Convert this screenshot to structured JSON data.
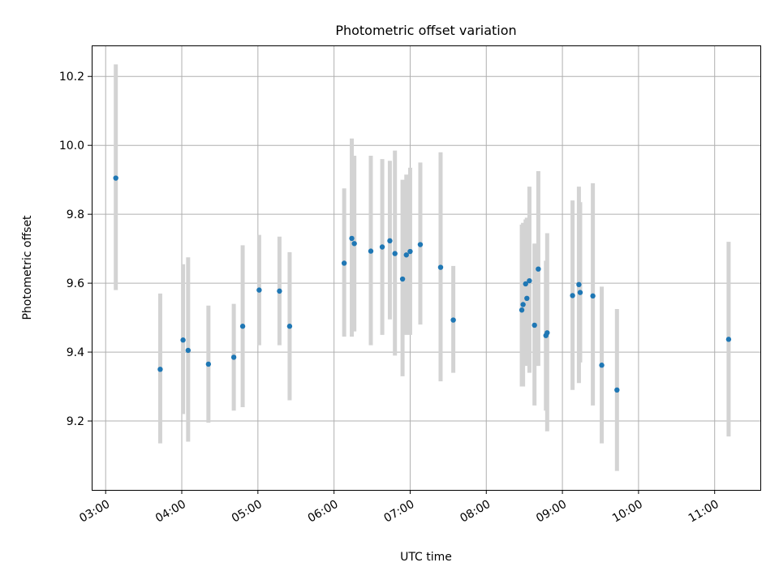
{
  "chart_data": {
    "type": "scatter",
    "title": "Photometric offset variation",
    "xlabel": "UTC time",
    "ylabel": "Photometric offset",
    "x_is_time": true,
    "xlim": [
      "02:49",
      "11:36"
    ],
    "ylim": [
      9.0,
      10.29
    ],
    "x_ticks": [
      "03:00",
      "04:00",
      "05:00",
      "06:00",
      "07:00",
      "08:00",
      "09:00",
      "10:00",
      "11:00"
    ],
    "y_ticks": [
      9.2,
      9.4,
      9.6,
      9.8,
      10.0,
      10.2
    ],
    "y_tick_labels": [
      "9.2",
      "9.4",
      "9.6",
      "9.8",
      "10.0",
      "10.2"
    ],
    "grid": true,
    "colors": {
      "marker": "#1f77b4",
      "error_bar": "#d3d3d3",
      "grid": "#b0b0b0"
    },
    "series": [
      {
        "marker": "circle",
        "points": [
          {
            "x": "03:08",
            "y": 9.905,
            "lo": 9.58,
            "hi": 10.235
          },
          {
            "x": "03:43",
            "y": 9.35,
            "lo": 9.135,
            "hi": 9.57
          },
          {
            "x": "04:01",
            "y": 9.435,
            "lo": 9.22,
            "hi": 9.655
          },
          {
            "x": "04:05",
            "y": 9.405,
            "lo": 9.14,
            "hi": 9.675
          },
          {
            "x": "04:21",
            "y": 9.365,
            "lo": 9.195,
            "hi": 9.535
          },
          {
            "x": "04:41",
            "y": 9.385,
            "lo": 9.23,
            "hi": 9.54
          },
          {
            "x": "04:48",
            "y": 9.475,
            "lo": 9.24,
            "hi": 9.71
          },
          {
            "x": "05:01",
            "y": 9.58,
            "lo": 9.42,
            "hi": 9.74
          },
          {
            "x": "05:17",
            "y": 9.577,
            "lo": 9.42,
            "hi": 9.735
          },
          {
            "x": "05:25",
            "y": 9.475,
            "lo": 9.26,
            "hi": 9.69
          },
          {
            "x": "06:08",
            "y": 9.658,
            "lo": 9.445,
            "hi": 9.875
          },
          {
            "x": "06:14",
            "y": 9.73,
            "lo": 9.445,
            "hi": 10.02
          },
          {
            "x": "06:16",
            "y": 9.715,
            "lo": 9.46,
            "hi": 9.97
          },
          {
            "x": "06:29",
            "y": 9.693,
            "lo": 9.42,
            "hi": 9.97
          },
          {
            "x": "06:38",
            "y": 9.705,
            "lo": 9.45,
            "hi": 9.96
          },
          {
            "x": "06:44",
            "y": 9.723,
            "lo": 9.495,
            "hi": 9.955
          },
          {
            "x": "06:48",
            "y": 9.686,
            "lo": 9.39,
            "hi": 9.985
          },
          {
            "x": "06:54",
            "y": 9.612,
            "lo": 9.33,
            "hi": 9.9
          },
          {
            "x": "06:57",
            "y": 9.682,
            "lo": 9.45,
            "hi": 9.915
          },
          {
            "x": "07:00",
            "y": 9.692,
            "lo": 9.45,
            "hi": 9.935
          },
          {
            "x": "07:08",
            "y": 9.712,
            "lo": 9.48,
            "hi": 9.95
          },
          {
            "x": "07:24",
            "y": 9.646,
            "lo": 9.315,
            "hi": 9.98
          },
          {
            "x": "07:34",
            "y": 9.493,
            "lo": 9.34,
            "hi": 9.65
          },
          {
            "x": "08:28",
            "y": 9.522,
            "lo": 9.3,
            "hi": 9.77
          },
          {
            "x": "08:29",
            "y": 9.538,
            "lo": 9.3,
            "hi": 9.775
          },
          {
            "x": "08:31",
            "y": 9.598,
            "lo": 9.41,
            "hi": 9.785
          },
          {
            "x": "08:32",
            "y": 9.556,
            "lo": 9.36,
            "hi": 9.79
          },
          {
            "x": "08:34",
            "y": 9.607,
            "lo": 9.34,
            "hi": 9.88
          },
          {
            "x": "08:38",
            "y": 9.478,
            "lo": 9.245,
            "hi": 9.715
          },
          {
            "x": "08:41",
            "y": 9.641,
            "lo": 9.36,
            "hi": 9.925
          },
          {
            "x": "08:47",
            "y": 9.448,
            "lo": 9.23,
            "hi": 9.665
          },
          {
            "x": "08:48",
            "y": 9.456,
            "lo": 9.17,
            "hi": 9.745
          },
          {
            "x": "09:08",
            "y": 9.564,
            "lo": 9.29,
            "hi": 9.84
          },
          {
            "x": "09:13",
            "y": 9.596,
            "lo": 9.31,
            "hi": 9.88
          },
          {
            "x": "09:14",
            "y": 9.573,
            "lo": 9.37,
            "hi": 9.835
          },
          {
            "x": "09:24",
            "y": 9.563,
            "lo": 9.245,
            "hi": 9.89
          },
          {
            "x": "09:31",
            "y": 9.362,
            "lo": 9.135,
            "hi": 9.59
          },
          {
            "x": "09:43",
            "y": 9.29,
            "lo": 9.055,
            "hi": 9.525
          },
          {
            "x": "11:11",
            "y": 9.437,
            "lo": 9.155,
            "hi": 9.72
          }
        ]
      }
    ]
  }
}
